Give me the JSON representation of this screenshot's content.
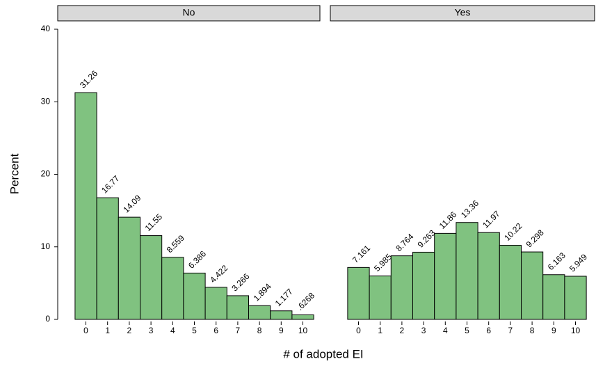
{
  "chart_data": {
    "type": "bar",
    "ylabel": "Percent",
    "xlabel": "# of adopted EI",
    "ylim": [
      0,
      40
    ],
    "yticks": [
      0,
      10,
      20,
      30,
      40
    ],
    "categories": [
      "0",
      "1",
      "2",
      "3",
      "4",
      "5",
      "6",
      "7",
      "8",
      "9",
      "10"
    ],
    "color": "#80c280",
    "series": [
      {
        "name": "No",
        "values": [
          31.26,
          16.77,
          14.09,
          11.55,
          8.559,
          6.386,
          4.422,
          3.266,
          1.894,
          1.177,
          0.6268
        ],
        "value_labels": [
          "31.26",
          "16.77",
          "14.09",
          "11.55",
          "8.559",
          "6.386",
          "4.422",
          "3.266",
          "1.894",
          "1.177",
          ".6268"
        ]
      },
      {
        "name": "Yes",
        "values": [
          7.161,
          5.985,
          8.764,
          9.263,
          11.86,
          13.36,
          11.97,
          10.22,
          9.298,
          6.163,
          5.949
        ],
        "value_labels": [
          "7.161",
          "5.985",
          "8.764",
          "9.263",
          "11.86",
          "13.36",
          "11.97",
          "10.22",
          "9.298",
          "6.163",
          "5.949"
        ]
      }
    ]
  }
}
